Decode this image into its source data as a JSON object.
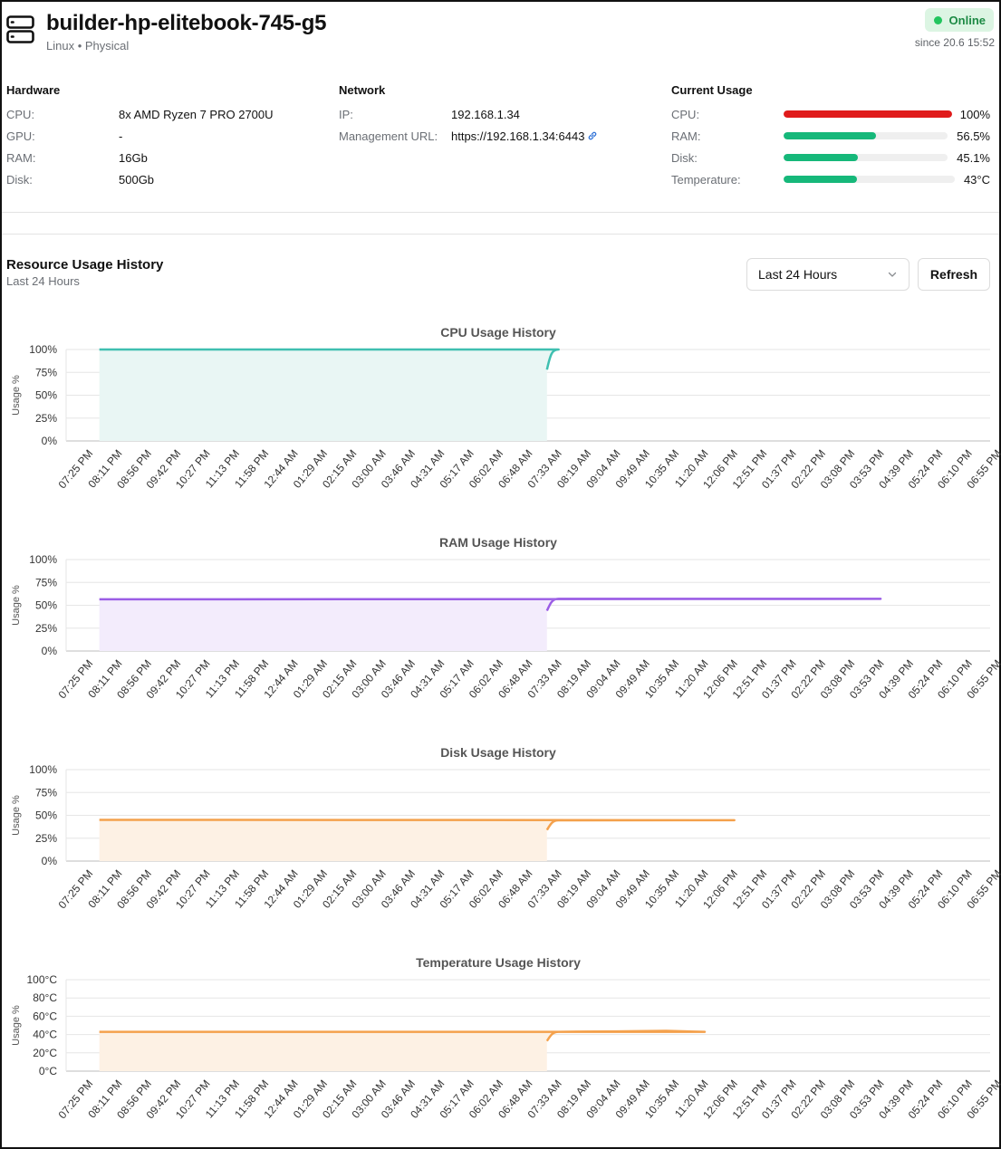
{
  "header": {
    "title": "builder-hp-elitebook-745-g5",
    "subtitle": "Linux • Physical",
    "status": "Online",
    "since": "since 20.6 15:52"
  },
  "hardware": {
    "heading": "Hardware",
    "rows": [
      {
        "label": "CPU:",
        "value": "8x AMD Ryzen 7 PRO 2700U"
      },
      {
        "label": "GPU:",
        "value": "-"
      },
      {
        "label": "RAM:",
        "value": "16Gb"
      },
      {
        "label": "Disk:",
        "value": "500Gb"
      }
    ]
  },
  "network": {
    "heading": "Network",
    "ip_label": "IP:",
    "ip": "192.168.1.34",
    "url_label": "Management URL:",
    "url": "https://192.168.1.34:6443"
  },
  "usage": {
    "heading": "Current Usage",
    "rows": [
      {
        "label": "CPU:",
        "value": "100%",
        "level": 1.0,
        "color": "#e01b1b"
      },
      {
        "label": "RAM:",
        "value": "56.5%",
        "level": 0.565,
        "color": "#16b87a"
      },
      {
        "label": "Disk:",
        "value": "45.1%",
        "level": 0.451,
        "color": "#16b87a"
      },
      {
        "label": "Temperature:",
        "value": "43°C",
        "level": 0.43,
        "color": "#16b87a"
      }
    ]
  },
  "history": {
    "title": "Resource Usage History",
    "subtitle": "Last 24 Hours",
    "range_select": "Last 24 Hours",
    "refresh_label": "Refresh"
  },
  "chart_data": [
    {
      "type": "area",
      "title": "CPU Usage History",
      "ylabel": "Usage %",
      "ylim": [
        0,
        100
      ],
      "yticks": [
        "0%",
        "25%",
        "50%",
        "75%",
        "100%"
      ],
      "xticks": [
        "07:25 PM",
        "08:11 PM",
        "08:56 PM",
        "09:42 PM",
        "10:27 PM",
        "11:13 PM",
        "11:58 PM",
        "12:44 AM",
        "01:29 AM",
        "02:15 AM",
        "03:00 AM",
        "03:46 AM",
        "04:31 AM",
        "05:17 AM",
        "06:02 AM",
        "06:48 AM",
        "07:33 AM",
        "08:19 AM",
        "09:04 AM",
        "09:49 AM",
        "10:35 AM",
        "11:20 AM",
        "12:06 PM",
        "12:51 PM",
        "01:37 PM",
        "02:22 PM",
        "03:08 PM",
        "03:53 PM",
        "04:39 PM",
        "05:24 PM",
        "06:10 PM",
        "06:55 PM"
      ],
      "series": [
        {
          "x": [
            "07:15 AM",
            "07:33 AM",
            "07:40 PM"
          ],
          "values": [
            78,
            100,
            100
          ]
        }
      ],
      "color": "#3fbfb0",
      "fill": "#e9f6f4"
    },
    {
      "type": "area",
      "title": "RAM Usage History",
      "ylabel": "Usage %",
      "ylim": [
        0,
        100
      ],
      "yticks": [
        "0%",
        "25%",
        "50%",
        "75%",
        "100%"
      ],
      "xticks": [
        "07:25 PM",
        "08:11 PM",
        "08:56 PM",
        "09:42 PM",
        "10:27 PM",
        "11:13 PM",
        "11:58 PM",
        "12:44 AM",
        "01:29 AM",
        "02:15 AM",
        "03:00 AM",
        "03:46 AM",
        "04:31 AM",
        "05:17 AM",
        "06:02 AM",
        "06:48 AM",
        "07:33 AM",
        "08:19 AM",
        "09:04 AM",
        "09:49 AM",
        "10:35 AM",
        "11:20 AM",
        "12:06 PM",
        "12:51 PM",
        "01:37 PM",
        "02:22 PM",
        "03:08 PM",
        "03:53 PM",
        "04:39 PM",
        "05:24 PM",
        "06:10 PM",
        "06:55 PM"
      ],
      "series": [
        {
          "x": [
            "07:15 AM",
            "07:33 AM",
            "11:20 AM",
            "03:53 PM",
            "07:40 PM"
          ],
          "values": [
            44,
            57,
            57,
            57,
            56.5
          ]
        }
      ],
      "color": "#9b5de5",
      "fill": "#f3ecfc"
    },
    {
      "type": "area",
      "title": "Disk Usage History",
      "ylabel": "Usage %",
      "ylim": [
        0,
        100
      ],
      "yticks": [
        "0%",
        "25%",
        "50%",
        "75%",
        "100%"
      ],
      "xticks": [
        "07:25 PM",
        "08:11 PM",
        "08:56 PM",
        "09:42 PM",
        "10:27 PM",
        "11:13 PM",
        "11:58 PM",
        "12:44 AM",
        "01:29 AM",
        "02:15 AM",
        "03:00 AM",
        "03:46 AM",
        "04:31 AM",
        "05:17 AM",
        "06:02 AM",
        "06:48 AM",
        "07:33 AM",
        "08:19 AM",
        "09:04 AM",
        "09:49 AM",
        "10:35 AM",
        "11:20 AM",
        "12:06 PM",
        "12:51 PM",
        "01:37 PM",
        "02:22 PM",
        "03:08 PM",
        "03:53 PM",
        "04:39 PM",
        "05:24 PM",
        "06:10 PM",
        "06:55 PM"
      ],
      "series": [
        {
          "x": [
            "07:15 AM",
            "07:33 AM",
            "12:06 PM",
            "07:40 PM"
          ],
          "values": [
            34,
            44.5,
            44.7,
            45.1
          ]
        }
      ],
      "color": "#f4a14c",
      "fill": "#fdf1e4"
    },
    {
      "type": "area",
      "title": "Temperature Usage History",
      "ylabel": "Usage %",
      "ylim": [
        0,
        100
      ],
      "yticks": [
        "0°C",
        "20°C",
        "40°C",
        "60°C",
        "80°C",
        "100°C"
      ],
      "xticks": [
        "07:25 PM",
        "08:11 PM",
        "08:56 PM",
        "09:42 PM",
        "10:27 PM",
        "11:13 PM",
        "11:58 PM",
        "12:44 AM",
        "01:29 AM",
        "02:15 AM",
        "03:00 AM",
        "03:46 AM",
        "04:31 AM",
        "05:17 AM",
        "06:02 AM",
        "06:48 AM",
        "07:33 AM",
        "08:19 AM",
        "09:04 AM",
        "09:49 AM",
        "10:35 AM",
        "11:20 AM",
        "12:06 PM",
        "12:51 PM",
        "01:37 PM",
        "02:22 PM",
        "03:08 PM",
        "03:53 PM",
        "04:39 PM",
        "05:24 PM",
        "06:10 PM",
        "06:55 PM"
      ],
      "series": [
        {
          "x": [
            "07:15 AM",
            "07:33 AM",
            "09:04 AM",
            "10:20 AM",
            "11:20 AM",
            "07:40 PM"
          ],
          "values": [
            33,
            43,
            43.5,
            44,
            43,
            43
          ]
        }
      ],
      "color": "#f4a14c",
      "fill": "#fdf1e4"
    }
  ]
}
